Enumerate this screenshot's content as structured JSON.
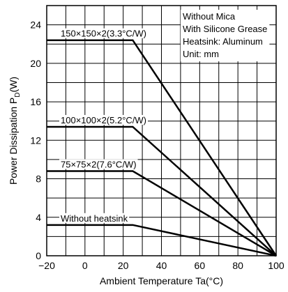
{
  "chart_data": {
    "type": "line",
    "xlabel": "Ambient Temperature Ta(°C)",
    "ylabel": "Power Dissipation P",
    "ylabel_sub": "D",
    "ylabel_unit": "(W)",
    "xlim": [
      -20,
      100
    ],
    "ylim": [
      0,
      26
    ],
    "x_ticks": [
      -20,
      0,
      20,
      40,
      60,
      80,
      100
    ],
    "x_tick_labels": [
      "−20",
      "0",
      "20",
      "40",
      "60",
      "80",
      "100"
    ],
    "y_ticks": [
      0,
      4,
      8,
      12,
      16,
      20,
      24
    ],
    "y_tick_labels": [
      "0",
      "4",
      "8",
      "12",
      "16",
      "20",
      "24"
    ],
    "x_gridlines": [
      -20,
      -10,
      0,
      10,
      20,
      30,
      40,
      50,
      60,
      70,
      80,
      90,
      100
    ],
    "y_gridlines": [
      0,
      2,
      4,
      6,
      8,
      10,
      12,
      14,
      16,
      18,
      20,
      22,
      24,
      26
    ],
    "grid": true,
    "annotations": [
      "Without Mica",
      "With Silicone Grease",
      "Heatsink: Aluminum",
      "Unit: mm"
    ],
    "series": [
      {
        "name": "150×150×2(3.3°C/W)",
        "x": [
          -20,
          25,
          100
        ],
        "y": [
          22.4,
          22.4,
          0
        ]
      },
      {
        "name": "100×100×2(5.2°C/W)",
        "x": [
          -20,
          25,
          100
        ],
        "y": [
          13.4,
          13.4,
          0
        ]
      },
      {
        "name": "75×75×2(7.6°C/W)",
        "x": [
          -20,
          25,
          100
        ],
        "y": [
          8.8,
          8.8,
          0
        ]
      },
      {
        "name": "Without heatsink",
        "x": [
          -20,
          25,
          100
        ],
        "y": [
          3.2,
          3.2,
          0
        ]
      }
    ]
  }
}
